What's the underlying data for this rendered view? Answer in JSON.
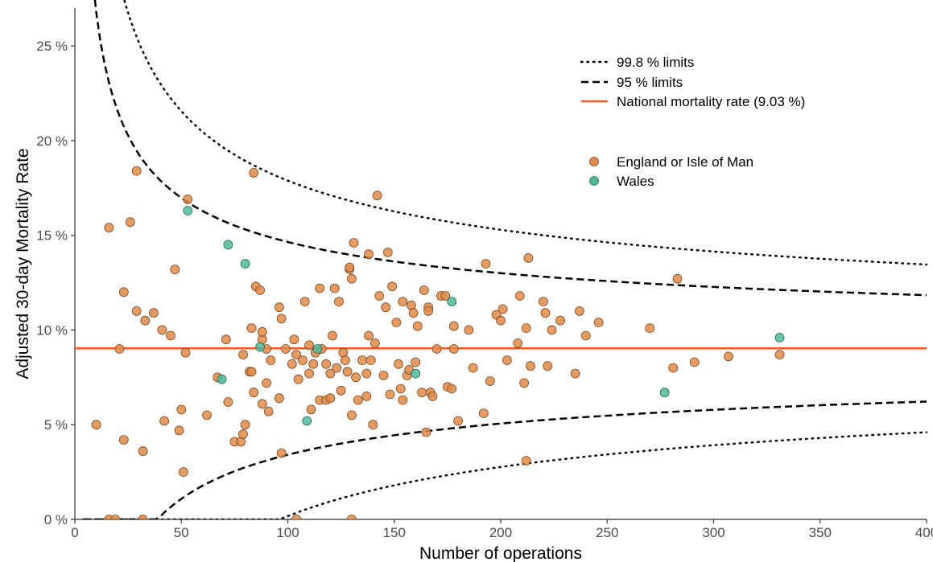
{
  "chart_data": {
    "type": "scatter",
    "title": "",
    "xlabel": "Number of operations",
    "ylabel": "Adjusted 30-day Mortality Rate",
    "xlim": [
      0,
      400
    ],
    "ylim": [
      0,
      0.27
    ],
    "x_ticks": [
      0,
      50,
      100,
      150,
      200,
      250,
      300,
      350,
      400
    ],
    "x_tick_labels": [
      "0",
      "50",
      "100",
      "150",
      "200",
      "250",
      "300",
      "350",
      "400"
    ],
    "y_ticks": [
      0,
      0.05,
      0.1,
      0.15,
      0.2,
      0.25
    ],
    "y_tick_labels": [
      "0 %",
      "5 %",
      "10 %",
      "15 %",
      "20 %",
      "25 %"
    ],
    "grid": false,
    "legend_position": "top-right",
    "colors": {
      "england": "#e08b49",
      "wales": "#4fb99a",
      "national": "#f15a22",
      "limits": "#000000"
    },
    "reference_lines": [
      {
        "label": "99.8 % limits",
        "style": "dotted"
      },
      {
        "label": "95 % limits",
        "style": "dashed"
      },
      {
        "label": "National mortality rate (9.03 %)",
        "style": "solid",
        "value": 0.0903
      }
    ],
    "series": [
      {
        "name": "England or Isle of Man",
        "points": [
          [
            10,
            0.05
          ],
          [
            16,
            0.154
          ],
          [
            16,
            0
          ],
          [
            19,
            0
          ],
          [
            21,
            0.09
          ],
          [
            23,
            0.12
          ],
          [
            23,
            0.042
          ],
          [
            26,
            0.157
          ],
          [
            29,
            0.184
          ],
          [
            29,
            0.11
          ],
          [
            32,
            0.036
          ],
          [
            32,
            0
          ],
          [
            33,
            0.105
          ],
          [
            37,
            0.109
          ],
          [
            41,
            0.1
          ],
          [
            42,
            0.052
          ],
          [
            45,
            0.097
          ],
          [
            47,
            0.132
          ],
          [
            49,
            0.047
          ],
          [
            50,
            0.058
          ],
          [
            51,
            0.025
          ],
          [
            52,
            0.088
          ],
          [
            53,
            0.169
          ],
          [
            62,
            0.055
          ],
          [
            67,
            0.075
          ],
          [
            71,
            0.095
          ],
          [
            72,
            0.062
          ],
          [
            75,
            0.041
          ],
          [
            78,
            0.041
          ],
          [
            79,
            0.045
          ],
          [
            79,
            0.087
          ],
          [
            80,
            0.05
          ],
          [
            82,
            0.078
          ],
          [
            83,
            0.101
          ],
          [
            83,
            0.078
          ],
          [
            84,
            0.183
          ],
          [
            84,
            0.067
          ],
          [
            85,
            0.123
          ],
          [
            87,
            0.121
          ],
          [
            88,
            0.095
          ],
          [
            88,
            0.099
          ],
          [
            88,
            0.061
          ],
          [
            90,
            0.072
          ],
          [
            90,
            0.09
          ],
          [
            91,
            0.057
          ],
          [
            92,
            0.084
          ],
          [
            96,
            0.112
          ],
          [
            96,
            0.064
          ],
          [
            97,
            0.106
          ],
          [
            97,
            0.035
          ],
          [
            99,
            0.09
          ],
          [
            102,
            0.082
          ],
          [
            103,
            0.095
          ],
          [
            104,
            0.087
          ],
          [
            104,
            0
          ],
          [
            105,
            0.074
          ],
          [
            107,
            0.084
          ],
          [
            108,
            0.115
          ],
          [
            110,
            0.092
          ],
          [
            110,
            0.077
          ],
          [
            111,
            0.058
          ],
          [
            112,
            0.082
          ],
          [
            113,
            0.088
          ],
          [
            115,
            0.122
          ],
          [
            115,
            0.063
          ],
          [
            116,
            0.09
          ],
          [
            118,
            0.082
          ],
          [
            118,
            0.063
          ],
          [
            120,
            0.064
          ],
          [
            120,
            0.077
          ],
          [
            121,
            0.097
          ],
          [
            122,
            0.122
          ],
          [
            123,
            0.08
          ],
          [
            124,
            0.115
          ],
          [
            125,
            0.068
          ],
          [
            126,
            0.088
          ],
          [
            127,
            0.084
          ],
          [
            128,
            0.078
          ],
          [
            129,
            0.132
          ],
          [
            129,
            0.133
          ],
          [
            130,
            0.127
          ],
          [
            130,
            0.055
          ],
          [
            130,
            0
          ],
          [
            131,
            0.146
          ],
          [
            132,
            0.075
          ],
          [
            133,
            0.063
          ],
          [
            135,
            0.084
          ],
          [
            137,
            0.077
          ],
          [
            137,
            0.065
          ],
          [
            138,
            0.14
          ],
          [
            138,
            0.097
          ],
          [
            139,
            0.084
          ],
          [
            140,
            0.05
          ],
          [
            141,
            0.093
          ],
          [
            142,
            0.171
          ],
          [
            143,
            0.118
          ],
          [
            145,
            0.076
          ],
          [
            146,
            0.112
          ],
          [
            147,
            0.141
          ],
          [
            148,
            0.066
          ],
          [
            149,
            0.123
          ],
          [
            151,
            0.104
          ],
          [
            152,
            0.082
          ],
          [
            153,
            0.069
          ],
          [
            154,
            0.063
          ],
          [
            154,
            0.115
          ],
          [
            156,
            0.076
          ],
          [
            157,
            0.079
          ],
          [
            158,
            0.113
          ],
          [
            159,
            0.109
          ],
          [
            160,
            0.083
          ],
          [
            161,
            0.102
          ],
          [
            163,
            0.067
          ],
          [
            164,
            0.121
          ],
          [
            165,
            0.046
          ],
          [
            166,
            0.112
          ],
          [
            166,
            0.11
          ],
          [
            167,
            0.067
          ],
          [
            168,
            0.065
          ],
          [
            170,
            0.09
          ],
          [
            172,
            0.118
          ],
          [
            174,
            0.118
          ],
          [
            175,
            0.07
          ],
          [
            177,
            0.069
          ],
          [
            178,
            0.102
          ],
          [
            178,
            0.09
          ],
          [
            180,
            0.052
          ],
          [
            185,
            0.1
          ],
          [
            187,
            0.08
          ],
          [
            192,
            0.056
          ],
          [
            193,
            0.135
          ],
          [
            195,
            0.073
          ],
          [
            198,
            0.108
          ],
          [
            200,
            0.105
          ],
          [
            201,
            0.111
          ],
          [
            203,
            0.084
          ],
          [
            208,
            0.093
          ],
          [
            209,
            0.118
          ],
          [
            211,
            0.072
          ],
          [
            212,
            0.101
          ],
          [
            212,
            0.031
          ],
          [
            213,
            0.138
          ],
          [
            214,
            0.081
          ],
          [
            220,
            0.115
          ],
          [
            221,
            0.109
          ],
          [
            222,
            0.081
          ],
          [
            224,
            0.1
          ],
          [
            228,
            0.105
          ],
          [
            235,
            0.077
          ],
          [
            237,
            0.11
          ],
          [
            240,
            0.097
          ],
          [
            246,
            0.104
          ],
          [
            270,
            0.101
          ],
          [
            281,
            0.08
          ],
          [
            283,
            0.127
          ],
          [
            291,
            0.083
          ],
          [
            307,
            0.086
          ],
          [
            331,
            0.087
          ]
        ]
      },
      {
        "name": "Wales",
        "points": [
          [
            53,
            0.163
          ],
          [
            69,
            0.074
          ],
          [
            72,
            0.145
          ],
          [
            80,
            0.135
          ],
          [
            87,
            0.091
          ],
          [
            109,
            0.052
          ],
          [
            114,
            0.09
          ],
          [
            160,
            0.077
          ],
          [
            177,
            0.115
          ],
          [
            277,
            0.067
          ],
          [
            331,
            0.096
          ]
        ]
      }
    ]
  }
}
